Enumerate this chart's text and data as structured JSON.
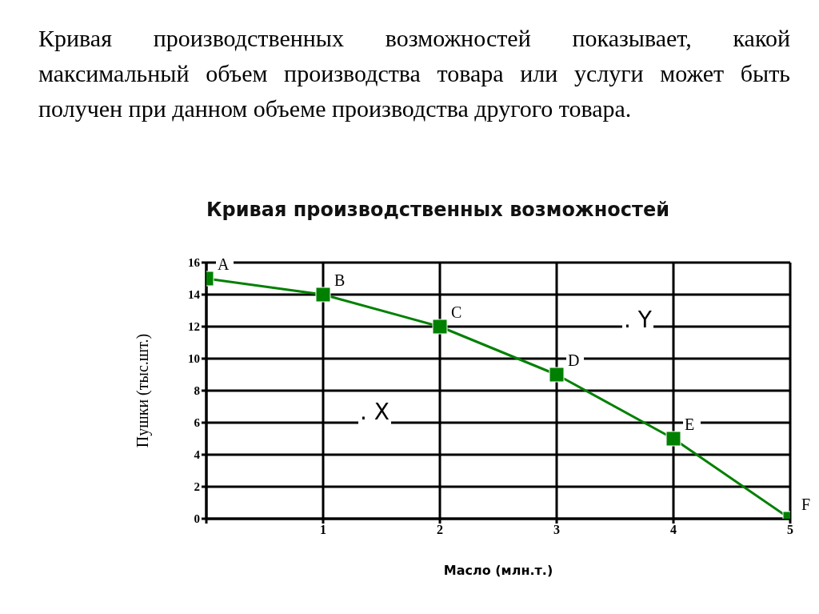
{
  "chart_data": {
    "type": "line",
    "title": "Кривая производственных возможностей",
    "xlabel": "Масло (млн.т.)",
    "ylabel": "Пушки (тыс.шт.)",
    "annotations": [
      "Кривая производственных возможностей показывает, какой максимальный объем производства товара или услуги может быть получен при данном объеме производства другого товара.",
      {
        "text": "A",
        "x": 0,
        "y": 15
      },
      {
        "text": "B",
        "x": 1,
        "y": 14
      },
      {
        "text": "C",
        "x": 2,
        "y": 12
      },
      {
        "text": "D",
        "x": 3,
        "y": 9
      },
      {
        "text": "E",
        "x": 4,
        "y": 5
      },
      {
        "text": "F",
        "x": 5,
        "y": 0
      },
      ". X",
      ". Y"
    ],
    "x": [
      0,
      1,
      2,
      3,
      4,
      5
    ],
    "series": [
      {
        "color": "#008000",
        "values": [
          15,
          14,
          12,
          9,
          5,
          0
        ]
      }
    ],
    "xlim": [
      0,
      5
    ],
    "xticks": [
      {
        "value": 0,
        "label": null
      },
      1,
      2,
      3,
      4,
      5
    ],
    "ylim": [
      0,
      16
    ],
    "yticks": [
      0,
      2,
      4,
      6,
      8,
      10,
      12,
      14,
      16
    ],
    "grid": true,
    "marker": "square",
    "line_style": "solid"
  }
}
